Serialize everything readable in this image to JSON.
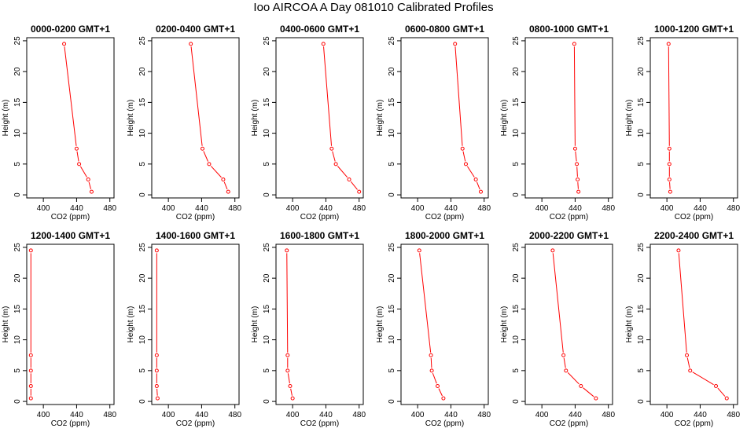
{
  "title": "Ioo AIRCOA A  Day 081010  Calibrated Profiles",
  "chart_data": [
    {
      "type": "line",
      "title": "0000-0200 GMT+1",
      "xlabel": "CO2 (ppm)",
      "ylabel": "Height (m)",
      "xlim": [
        380,
        485
      ],
      "ylim": [
        -0.5,
        25.5
      ],
      "xticks": [
        400,
        440,
        480
      ],
      "yticks": [
        0,
        5,
        10,
        15,
        20,
        25
      ],
      "color": "#ff0000",
      "x": [
        458,
        454,
        443,
        440,
        425
      ],
      "y": [
        0.5,
        2.5,
        5,
        7.5,
        24.5
      ]
    },
    {
      "type": "line",
      "title": "0200-0400 GMT+1",
      "xlabel": "CO2 (ppm)",
      "ylabel": "Height (m)",
      "xlim": [
        380,
        485
      ],
      "ylim": [
        -0.5,
        25.5
      ],
      "xticks": [
        400,
        440,
        480
      ],
      "yticks": [
        0,
        5,
        10,
        15,
        20,
        25
      ],
      "color": "#ff0000",
      "x": [
        472,
        466,
        449,
        441,
        427
      ],
      "y": [
        0.5,
        2.5,
        5,
        7.5,
        24.5
      ]
    },
    {
      "type": "line",
      "title": "0400-0600 GMT+1",
      "xlabel": "CO2 (ppm)",
      "ylabel": "Height (m)",
      "xlim": [
        380,
        485
      ],
      "ylim": [
        -0.5,
        25.5
      ],
      "xticks": [
        400,
        440,
        480
      ],
      "yticks": [
        0,
        5,
        10,
        15,
        20,
        25
      ],
      "color": "#ff0000",
      "x": [
        480,
        468,
        452,
        447,
        437
      ],
      "y": [
        0.5,
        2.5,
        5,
        7.5,
        24.5
      ]
    },
    {
      "type": "line",
      "title": "0600-0800 GMT+1",
      "xlabel": "CO2 (ppm)",
      "ylabel": "Height (m)",
      "xlim": [
        380,
        485
      ],
      "ylim": [
        -0.5,
        25.5
      ],
      "xticks": [
        400,
        440,
        480
      ],
      "yticks": [
        0,
        5,
        10,
        15,
        20,
        25
      ],
      "color": "#ff0000",
      "x": [
        476,
        470,
        458,
        454,
        445
      ],
      "y": [
        0.5,
        2.5,
        5,
        7.5,
        24.5
      ]
    },
    {
      "type": "line",
      "title": "0800-1000 GMT+1",
      "xlabel": "CO2 (ppm)",
      "ylabel": "Height (m)",
      "xlim": [
        380,
        485
      ],
      "ylim": [
        -0.5,
        25.5
      ],
      "xticks": [
        400,
        440,
        480
      ],
      "yticks": [
        0,
        5,
        10,
        15,
        20,
        25
      ],
      "color": "#ff0000",
      "x": [
        444,
        443,
        442,
        440,
        439
      ],
      "y": [
        0.5,
        2.5,
        5,
        7.5,
        24.5
      ]
    },
    {
      "type": "line",
      "title": "1000-1200 GMT+1",
      "xlabel": "CO2 (ppm)",
      "ylabel": "Height (m)",
      "xlim": [
        380,
        485
      ],
      "ylim": [
        -0.5,
        25.5
      ],
      "xticks": [
        400,
        440,
        480
      ],
      "yticks": [
        0,
        5,
        10,
        15,
        20,
        25
      ],
      "color": "#ff0000",
      "x": [
        404,
        403,
        403,
        403,
        402
      ],
      "y": [
        0.5,
        2.5,
        5,
        7.5,
        24.5
      ]
    },
    {
      "type": "line",
      "title": "1200-1400 GMT+1",
      "xlabel": "CO2 (ppm)",
      "ylabel": "Height (m)",
      "xlim": [
        380,
        485
      ],
      "ylim": [
        -0.5,
        25.5
      ],
      "xticks": [
        400,
        440,
        480
      ],
      "yticks": [
        0,
        5,
        10,
        15,
        20,
        25
      ],
      "color": "#ff0000",
      "x": [
        385,
        385,
        385,
        385,
        385
      ],
      "y": [
        0.5,
        2.5,
        5,
        7.5,
        24.5
      ]
    },
    {
      "type": "line",
      "title": "1400-1600 GMT+1",
      "xlabel": "CO2 (ppm)",
      "ylabel": "Height (m)",
      "xlim": [
        380,
        485
      ],
      "ylim": [
        -0.5,
        25.5
      ],
      "xticks": [
        400,
        440,
        480
      ],
      "yticks": [
        0,
        5,
        10,
        15,
        20,
        25
      ],
      "color": "#ff0000",
      "x": [
        387,
        386,
        386,
        386,
        386
      ],
      "y": [
        0.5,
        2.5,
        5,
        7.5,
        24.5
      ]
    },
    {
      "type": "line",
      "title": "1600-1800 GMT+1",
      "xlabel": "CO2 (ppm)",
      "ylabel": "Height (m)",
      "xlim": [
        380,
        485
      ],
      "ylim": [
        -0.5,
        25.5
      ],
      "xticks": [
        400,
        440,
        480
      ],
      "yticks": [
        0,
        5,
        10,
        15,
        20,
        25
      ],
      "color": "#ff0000",
      "x": [
        400,
        397,
        394,
        394,
        393
      ],
      "y": [
        0.5,
        2.5,
        5,
        7.5,
        24.5
      ]
    },
    {
      "type": "line",
      "title": "1800-2000 GMT+1",
      "xlabel": "CO2 (ppm)",
      "ylabel": "Height (m)",
      "xlim": [
        380,
        485
      ],
      "ylim": [
        -0.5,
        25.5
      ],
      "xticks": [
        400,
        440,
        480
      ],
      "yticks": [
        0,
        5,
        10,
        15,
        20,
        25
      ],
      "color": "#ff0000",
      "x": [
        431,
        424,
        417,
        416,
        402
      ],
      "y": [
        0.5,
        2.5,
        5,
        7.5,
        24.5
      ]
    },
    {
      "type": "line",
      "title": "2000-2200 GMT+1",
      "xlabel": "CO2 (ppm)",
      "ylabel": "Height (m)",
      "xlim": [
        380,
        485
      ],
      "ylim": [
        -0.5,
        25.5
      ],
      "xticks": [
        400,
        440,
        480
      ],
      "yticks": [
        0,
        5,
        10,
        15,
        20,
        25
      ],
      "color": "#ff0000",
      "x": [
        465,
        447,
        429,
        426,
        413
      ],
      "y": [
        0.5,
        2.5,
        5,
        7.5,
        24.5
      ]
    },
    {
      "type": "line",
      "title": "2200-2400 GMT+1",
      "xlabel": "CO2 (ppm)",
      "ylabel": "Height (m)",
      "xlim": [
        380,
        485
      ],
      "ylim": [
        -0.5,
        25.5
      ],
      "xticks": [
        400,
        440,
        480
      ],
      "yticks": [
        0,
        5,
        10,
        15,
        20,
        25
      ],
      "color": "#ff0000",
      "x": [
        472,
        459,
        428,
        424,
        414
      ],
      "y": [
        0.5,
        2.5,
        5,
        7.5,
        24.5
      ]
    }
  ]
}
